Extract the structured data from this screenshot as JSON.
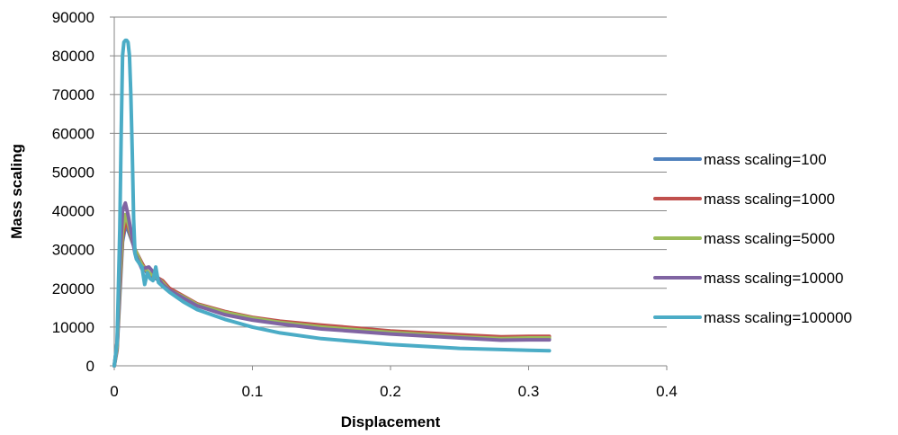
{
  "chart_data": {
    "type": "line",
    "title": "",
    "xlabel": "Displacement",
    "ylabel": "Mass scaling",
    "xlim": [
      0,
      0.4
    ],
    "ylim": [
      0,
      90000
    ],
    "x_ticks": [
      0,
      0.1,
      0.2,
      0.3,
      0.4
    ],
    "x_tick_labels": [
      "0",
      "0.1",
      "0.2",
      "0.3",
      "0.4"
    ],
    "y_ticks": [
      0,
      10000,
      20000,
      30000,
      40000,
      50000,
      60000,
      70000,
      80000,
      90000
    ],
    "y_tick_labels": [
      "0",
      "10000",
      "20000",
      "30000",
      "40000",
      "50000",
      "60000",
      "70000",
      "80000",
      "90000"
    ],
    "grid": "horizontal major",
    "legend_position": "right",
    "series": [
      {
        "name": "mass scaling=100",
        "color": "#4f81bd",
        "x": [
          0,
          0.002,
          0.004,
          0.006,
          0.008,
          0.01,
          0.012,
          0.015,
          0.02,
          0.025,
          0.03,
          0.035,
          0.04,
          0.05,
          0.06,
          0.08,
          0.1,
          0.12,
          0.15,
          0.2,
          0.25,
          0.28,
          0.3,
          0.315
        ],
        "y": [
          0,
          4000,
          18000,
          32000,
          36000,
          35000,
          33000,
          30000,
          26500,
          23000,
          22500,
          21500,
          19500,
          17500,
          15500,
          13500,
          12200,
          11300,
          10200,
          8800,
          7700,
          7200,
          7000,
          7000
        ]
      },
      {
        "name": "mass scaling=1000",
        "color": "#c0504d",
        "x": [
          0,
          0.002,
          0.004,
          0.006,
          0.008,
          0.01,
          0.012,
          0.015,
          0.02,
          0.025,
          0.03,
          0.035,
          0.04,
          0.05,
          0.06,
          0.08,
          0.1,
          0.12,
          0.15,
          0.2,
          0.25,
          0.28,
          0.3,
          0.315
        ],
        "y": [
          0,
          4500,
          20000,
          33000,
          37000,
          36000,
          33500,
          30000,
          26500,
          23500,
          23000,
          22000,
          20000,
          18000,
          16000,
          14000,
          12500,
          11500,
          10500,
          9000,
          8000,
          7500,
          7600,
          7600
        ]
      },
      {
        "name": "mass scaling=5000",
        "color": "#9bbb59",
        "x": [
          0,
          0.002,
          0.004,
          0.006,
          0.008,
          0.01,
          0.012,
          0.015,
          0.02,
          0.025,
          0.03,
          0.035,
          0.04,
          0.05,
          0.06,
          0.08,
          0.1,
          0.12,
          0.15,
          0.2,
          0.25,
          0.28,
          0.3,
          0.315
        ],
        "y": [
          0,
          5000,
          22000,
          35000,
          39000,
          37000,
          34000,
          30000,
          26000,
          24000,
          23000,
          21500,
          19500,
          17800,
          15800,
          13800,
          12300,
          11200,
          10000,
          8600,
          7500,
          7000,
          7200,
          7200
        ]
      },
      {
        "name": "mass scaling=10000",
        "color": "#8064a2",
        "x": [
          0,
          0.002,
          0.004,
          0.006,
          0.008,
          0.01,
          0.012,
          0.015,
          0.02,
          0.025,
          0.03,
          0.035,
          0.04,
          0.05,
          0.06,
          0.08,
          0.1,
          0.12,
          0.15,
          0.2,
          0.25,
          0.28,
          0.3,
          0.315
        ],
        "y": [
          0,
          6000,
          26000,
          40000,
          42000,
          39000,
          35000,
          29000,
          25000,
          25500,
          23500,
          21000,
          19500,
          17500,
          15500,
          13200,
          11800,
          10800,
          9500,
          8200,
          7200,
          6600,
          6700,
          6700
        ]
      },
      {
        "name": "mass scaling=100000",
        "color": "#4bacc6",
        "x": [
          0,
          0.002,
          0.004,
          0.005,
          0.006,
          0.007,
          0.008,
          0.009,
          0.01,
          0.011,
          0.012,
          0.013,
          0.014,
          0.015,
          0.016,
          0.018,
          0.02,
          0.022,
          0.024,
          0.026,
          0.028,
          0.03,
          0.032,
          0.035,
          0.04,
          0.05,
          0.06,
          0.08,
          0.1,
          0.12,
          0.15,
          0.2,
          0.25,
          0.28,
          0.3,
          0.315
        ],
        "y": [
          0,
          6000,
          35000,
          60000,
          80000,
          83500,
          84000,
          84000,
          83500,
          80000,
          70000,
          55000,
          38000,
          29000,
          27500,
          26500,
          25500,
          21000,
          24000,
          22500,
          22000,
          25500,
          21500,
          20500,
          19000,
          16500,
          14500,
          12000,
          10000,
          8500,
          7000,
          5500,
          4500,
          4200,
          4000,
          3900
        ]
      }
    ]
  }
}
